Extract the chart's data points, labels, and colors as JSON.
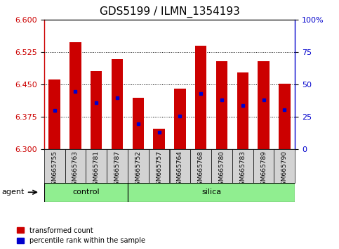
{
  "title": "GDS5199 / ILMN_1354193",
  "samples": [
    "GSM665755",
    "GSM665763",
    "GSM665781",
    "GSM665787",
    "GSM665752",
    "GSM665757",
    "GSM665764",
    "GSM665768",
    "GSM665780",
    "GSM665783",
    "GSM665789",
    "GSM665790"
  ],
  "groups": [
    "control",
    "control",
    "control",
    "control",
    "silica",
    "silica",
    "silica",
    "silica",
    "silica",
    "silica",
    "silica",
    "silica"
  ],
  "bar_tops": [
    6.462,
    6.548,
    6.482,
    6.51,
    6.42,
    6.348,
    6.44,
    6.54,
    6.505,
    6.478,
    6.505,
    6.452
  ],
  "bar_bottoms": [
    6.3,
    6.3,
    6.3,
    6.3,
    6.3,
    6.3,
    6.3,
    6.3,
    6.3,
    6.3,
    6.3,
    6.3
  ],
  "percentile_values": [
    6.39,
    6.435,
    6.408,
    6.42,
    6.36,
    6.34,
    6.377,
    6.43,
    6.415,
    6.402,
    6.415,
    6.392
  ],
  "ylim_left": [
    6.3,
    6.6
  ],
  "ylim_right": [
    0,
    100
  ],
  "yticks_left": [
    6.3,
    6.375,
    6.45,
    6.525,
    6.6
  ],
  "yticks_right": [
    0,
    25,
    50,
    75,
    100
  ],
  "bar_color": "#CC0000",
  "marker_color": "#0000CC",
  "tick_area_color": "#D3D3D3",
  "control_color": "#90EE90",
  "silica_color": "#90EE90",
  "agent_label": "agent",
  "legend_red": "transformed count",
  "legend_blue": "percentile rank within the sample",
  "bar_width": 0.55,
  "title_fontsize": 11,
  "tick_fontsize": 8,
  "group_fontsize": 8,
  "legend_fontsize": 7,
  "n_control": 4,
  "n_silica": 8
}
